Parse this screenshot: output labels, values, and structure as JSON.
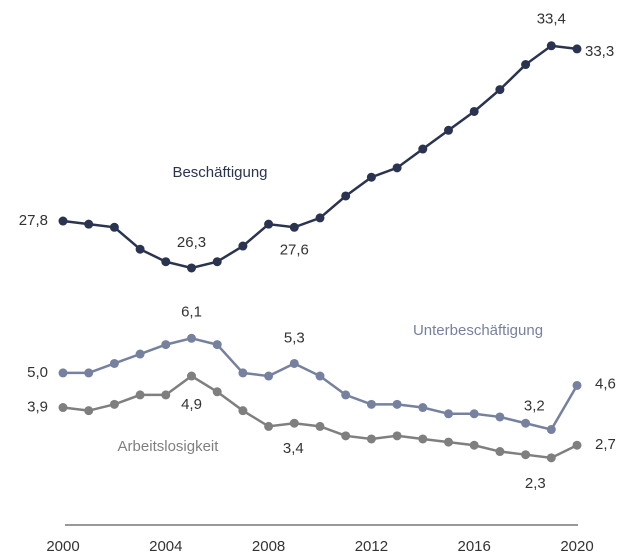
{
  "chart_data": [
    {
      "type": "line",
      "x": [
        2000,
        2001,
        2002,
        2003,
        2004,
        2005,
        2006,
        2007,
        2008,
        2009,
        2010,
        2011,
        2012,
        2013,
        2014,
        2015,
        2016,
        2017,
        2018,
        2019,
        2020
      ],
      "xlim": [
        2000,
        2020
      ],
      "ylim": [
        25.5,
        34
      ],
      "series": [
        {
          "name": "Beschäftigung",
          "color": "#2a3350",
          "values": [
            27.8,
            27.7,
            27.6,
            26.9,
            26.5,
            26.3,
            26.5,
            27.0,
            27.7,
            27.6,
            27.9,
            28.6,
            29.2,
            29.5,
            30.1,
            30.7,
            31.3,
            32.0,
            32.8,
            33.4,
            33.3
          ],
          "value_labels": [
            "27,8",
            null,
            null,
            null,
            null,
            "26,3",
            null,
            null,
            null,
            "27,6",
            null,
            null,
            null,
            null,
            null,
            null,
            null,
            null,
            null,
            "33,4",
            "33,3"
          ]
        }
      ]
    },
    {
      "type": "line",
      "x": [
        2000,
        2001,
        2002,
        2003,
        2004,
        2005,
        2006,
        2007,
        2008,
        2009,
        2010,
        2011,
        2012,
        2013,
        2014,
        2015,
        2016,
        2017,
        2018,
        2019,
        2020
      ],
      "xlim": [
        2000,
        2020
      ],
      "xticks": [
        2000,
        2004,
        2008,
        2012,
        2016,
        2020
      ],
      "ylim": [
        1.5,
        7
      ],
      "series": [
        {
          "name": "Unterbeschäftigung",
          "color": "#76819f",
          "values": [
            5.0,
            5.0,
            5.3,
            5.6,
            5.9,
            6.1,
            5.9,
            5.0,
            4.9,
            5.3,
            4.9,
            4.3,
            4.0,
            4.0,
            3.9,
            3.7,
            3.7,
            3.6,
            3.4,
            3.2,
            4.6
          ],
          "value_labels": [
            "5,0",
            null,
            null,
            null,
            null,
            "6,1",
            null,
            null,
            null,
            "5,3",
            null,
            null,
            null,
            null,
            null,
            null,
            null,
            null,
            null,
            "3,2",
            "4,6"
          ]
        },
        {
          "name": "Arbeitslosigkeit",
          "color": "#7f7f7f",
          "values": [
            3.9,
            3.8,
            4.0,
            4.3,
            4.3,
            4.9,
            4.4,
            3.8,
            3.3,
            3.4,
            3.3,
            3.0,
            2.9,
            3.0,
            2.9,
            2.8,
            2.7,
            2.5,
            2.4,
            2.3,
            2.7
          ],
          "value_labels": [
            "3,9",
            null,
            null,
            null,
            null,
            "4,9",
            null,
            null,
            null,
            "3,4",
            null,
            null,
            null,
            null,
            null,
            null,
            null,
            null,
            null,
            "2,3",
            "2,7"
          ]
        }
      ]
    }
  ]
}
